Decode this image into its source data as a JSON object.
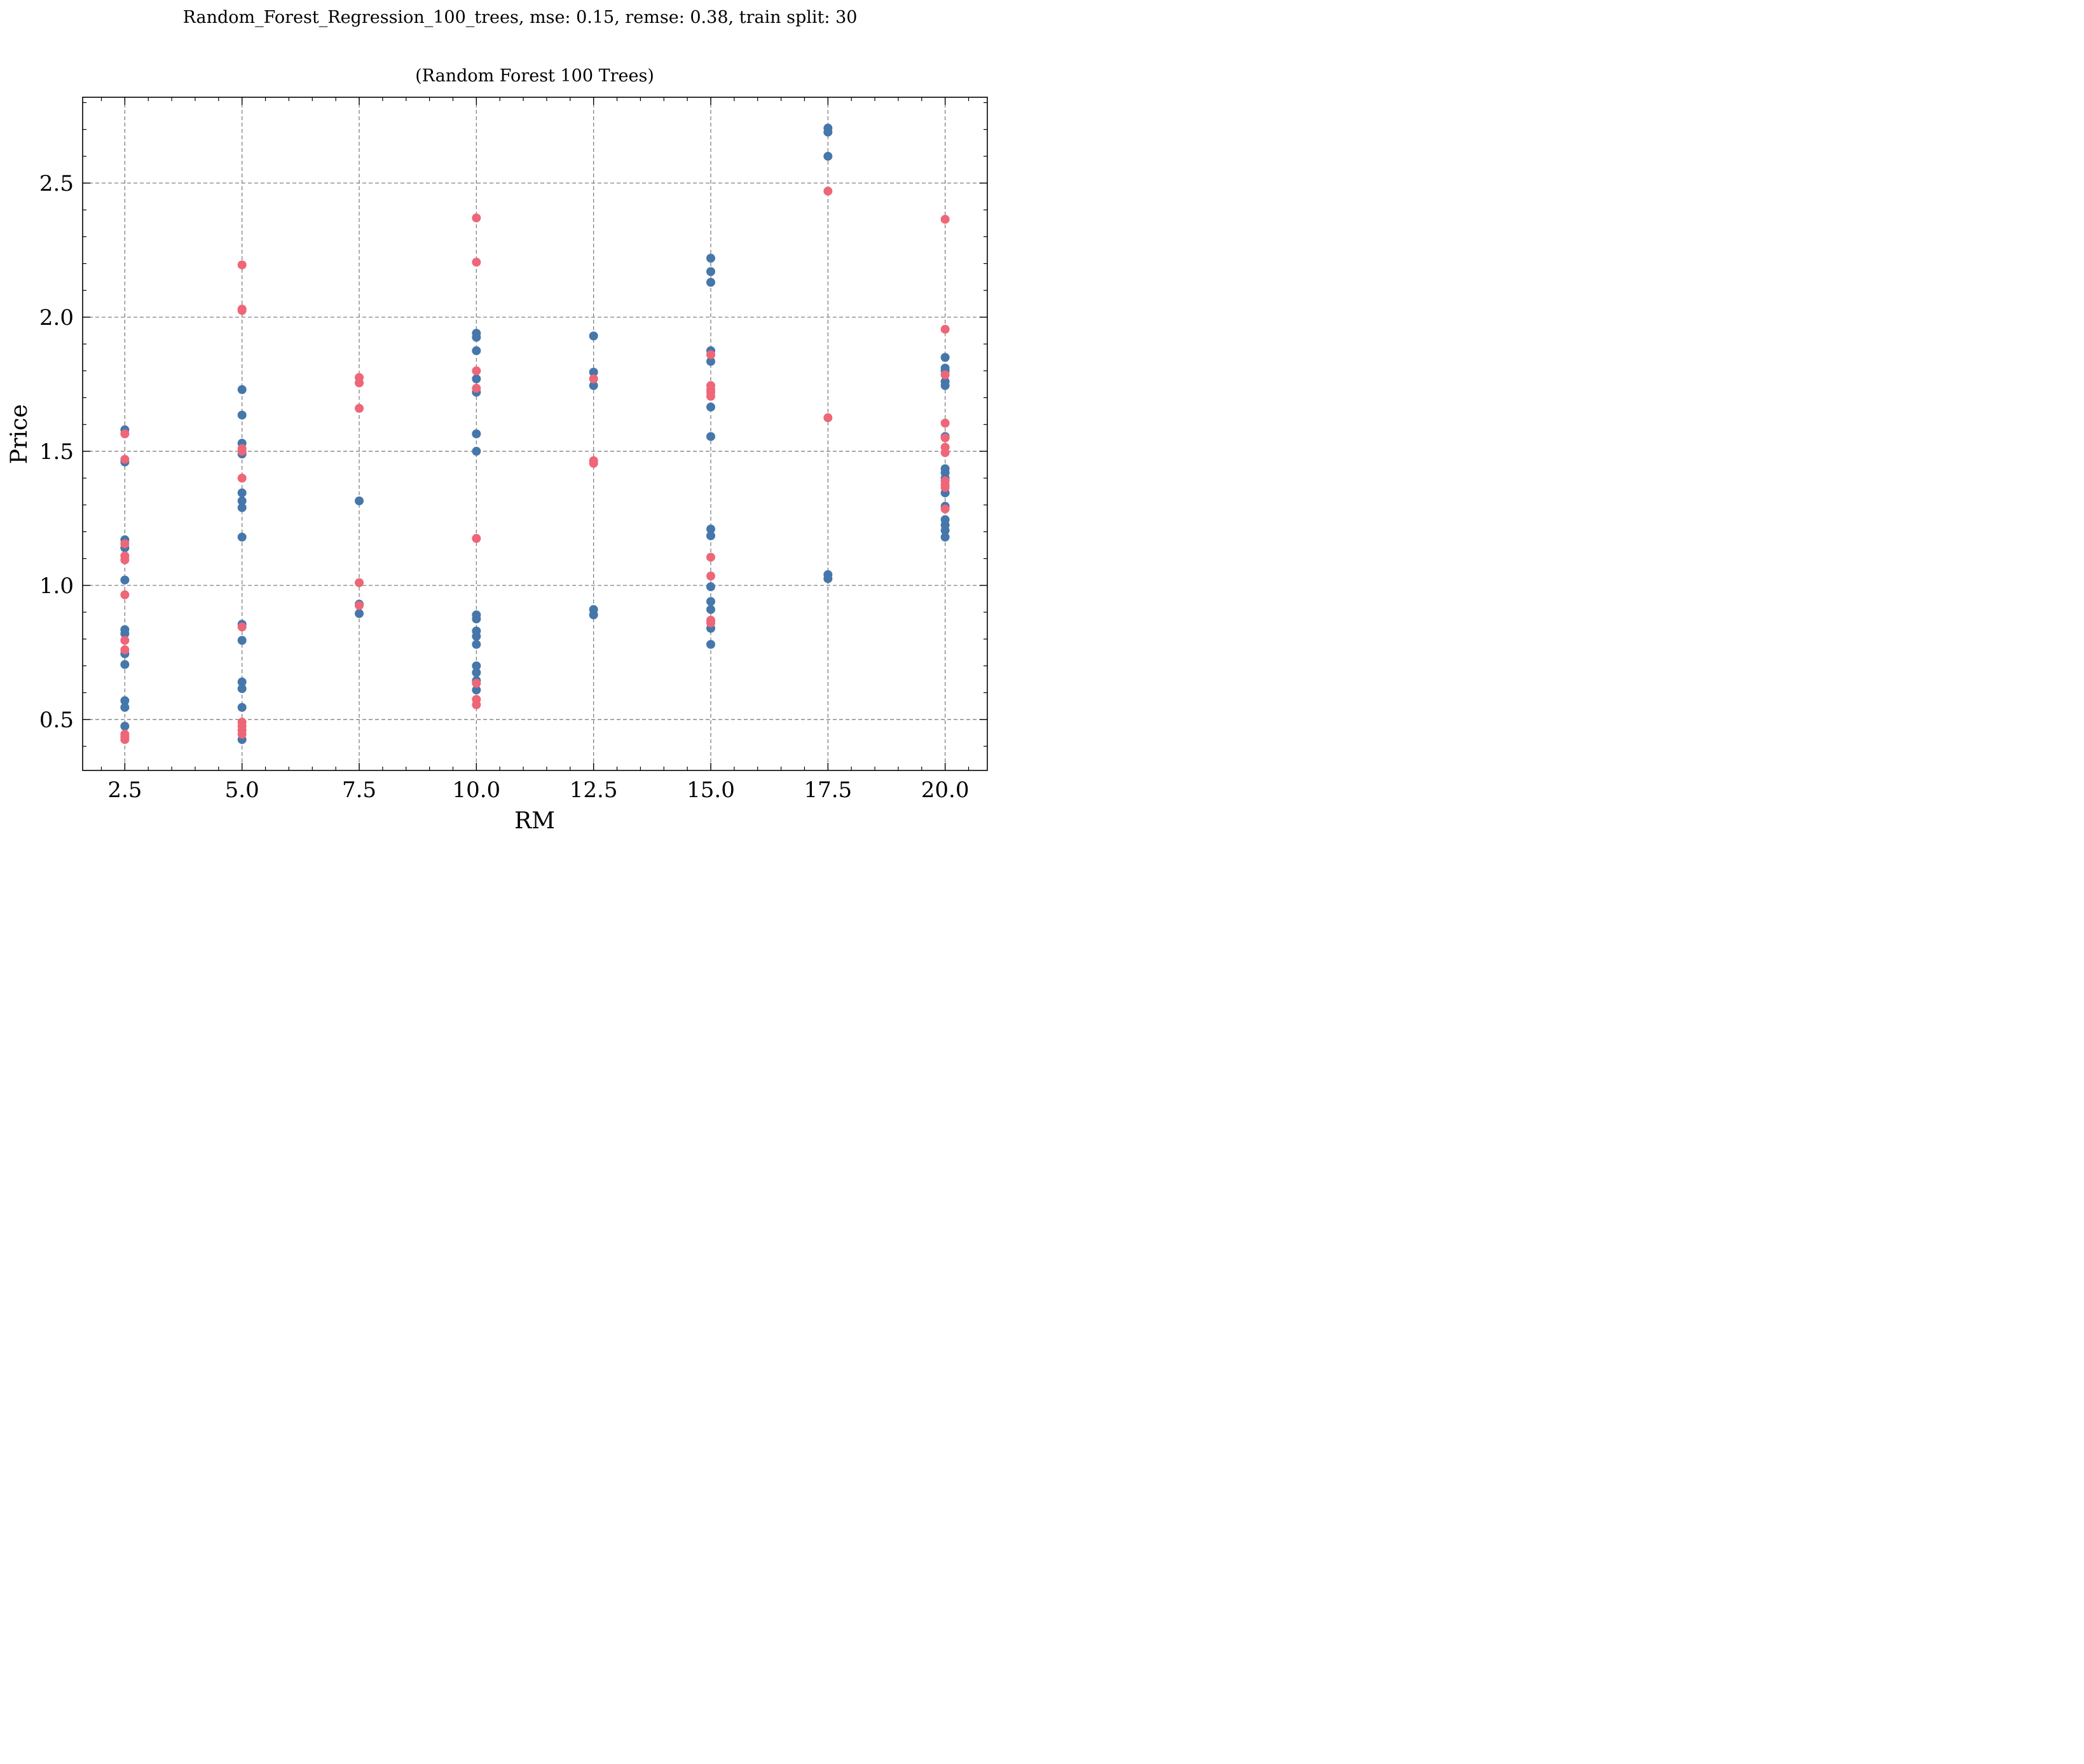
{
  "figure": {
    "suptitle": "Random_Forest_Regression_100_trees, mse: 0.15, remse: 0.38, train split: 30"
  },
  "chart_data": {
    "type": "scatter",
    "title": "(Random Forest 100 Trees)",
    "xlabel": "RM",
    "ylabel": "Price",
    "xlim": [
      1.6,
      20.9
    ],
    "ylim": [
      0.31,
      2.82
    ],
    "xticks": [
      2.5,
      5.0,
      7.5,
      10.0,
      12.5,
      15.0,
      17.5,
      20.0
    ],
    "xtick_labels": [
      "2.5",
      "5.0",
      "7.5",
      "10.0",
      "12.5",
      "15.0",
      "17.5",
      "20.0"
    ],
    "yticks": [
      0.5,
      1.0,
      1.5,
      2.0,
      2.5
    ],
    "ytick_labels": [
      "0.5",
      "1.0",
      "1.5",
      "2.0",
      "2.5"
    ],
    "grid": true,
    "legend": null,
    "colors": {
      "series_1": "#4577AA",
      "series_2": "#EE6677",
      "grid": "#808080",
      "axis": "#000000"
    },
    "series": [
      {
        "color": "#4577AA",
        "points": [
          [
            2.5,
            1.58
          ],
          [
            2.5,
            1.46
          ],
          [
            2.5,
            1.17
          ],
          [
            2.5,
            1.14
          ],
          [
            2.5,
            1.02
          ],
          [
            2.5,
            0.835
          ],
          [
            2.5,
            0.82
          ],
          [
            2.5,
            0.745
          ],
          [
            2.5,
            0.705
          ],
          [
            2.5,
            0.57
          ],
          [
            2.5,
            0.545
          ],
          [
            2.5,
            0.475
          ],
          [
            5.0,
            1.73
          ],
          [
            5.0,
            1.635
          ],
          [
            5.0,
            1.53
          ],
          [
            5.0,
            1.49
          ],
          [
            5.0,
            1.345
          ],
          [
            5.0,
            1.315
          ],
          [
            5.0,
            1.29
          ],
          [
            5.0,
            1.18
          ],
          [
            5.0,
            0.855
          ],
          [
            5.0,
            0.795
          ],
          [
            5.0,
            0.64
          ],
          [
            5.0,
            0.615
          ],
          [
            5.0,
            0.545
          ],
          [
            5.0,
            0.425
          ],
          [
            7.5,
            1.315
          ],
          [
            7.5,
            0.93
          ],
          [
            7.5,
            0.895
          ],
          [
            10.0,
            1.94
          ],
          [
            10.0,
            1.925
          ],
          [
            10.0,
            1.875
          ],
          [
            10.0,
            1.77
          ],
          [
            10.0,
            1.72
          ],
          [
            10.0,
            1.565
          ],
          [
            10.0,
            1.5
          ],
          [
            10.0,
            0.89
          ],
          [
            10.0,
            0.875
          ],
          [
            10.0,
            0.83
          ],
          [
            10.0,
            0.81
          ],
          [
            10.0,
            0.78
          ],
          [
            10.0,
            0.7
          ],
          [
            10.0,
            0.675
          ],
          [
            10.0,
            0.645
          ],
          [
            10.0,
            0.61
          ],
          [
            12.5,
            1.93
          ],
          [
            12.5,
            1.795
          ],
          [
            12.5,
            1.745
          ],
          [
            12.5,
            0.91
          ],
          [
            12.5,
            0.89
          ],
          [
            15.0,
            2.22
          ],
          [
            15.0,
            2.17
          ],
          [
            15.0,
            2.13
          ],
          [
            15.0,
            1.875
          ],
          [
            15.0,
            1.835
          ],
          [
            15.0,
            1.665
          ],
          [
            15.0,
            1.555
          ],
          [
            15.0,
            1.21
          ],
          [
            15.0,
            1.185
          ],
          [
            15.0,
            0.995
          ],
          [
            15.0,
            0.94
          ],
          [
            15.0,
            0.91
          ],
          [
            15.0,
            0.84
          ],
          [
            15.0,
            0.78
          ],
          [
            17.5,
            2.705
          ],
          [
            17.5,
            2.69
          ],
          [
            17.5,
            2.6
          ],
          [
            17.5,
            1.04
          ],
          [
            17.5,
            1.025
          ],
          [
            20.0,
            1.85
          ],
          [
            20.0,
            1.81
          ],
          [
            20.0,
            1.8
          ],
          [
            20.0,
            1.76
          ],
          [
            20.0,
            1.745
          ],
          [
            20.0,
            1.555
          ],
          [
            20.0,
            1.435
          ],
          [
            20.0,
            1.42
          ],
          [
            20.0,
            1.4
          ],
          [
            20.0,
            1.345
          ],
          [
            20.0,
            1.295
          ],
          [
            20.0,
            1.245
          ],
          [
            20.0,
            1.225
          ],
          [
            20.0,
            1.205
          ],
          [
            20.0,
            1.18
          ]
        ]
      },
      {
        "color": "#EE6677",
        "points": [
          [
            2.5,
            1.565
          ],
          [
            2.5,
            1.47
          ],
          [
            2.5,
            1.155
          ],
          [
            2.5,
            1.11
          ],
          [
            2.5,
            1.095
          ],
          [
            2.5,
            0.965
          ],
          [
            2.5,
            0.795
          ],
          [
            2.5,
            0.76
          ],
          [
            2.5,
            0.445
          ],
          [
            2.5,
            0.435
          ],
          [
            2.5,
            0.425
          ],
          [
            5.0,
            2.195
          ],
          [
            5.0,
            2.03
          ],
          [
            5.0,
            2.025
          ],
          [
            5.0,
            1.51
          ],
          [
            5.0,
            1.5
          ],
          [
            5.0,
            1.4
          ],
          [
            5.0,
            0.845
          ],
          [
            5.0,
            0.49
          ],
          [
            5.0,
            0.475
          ],
          [
            5.0,
            0.46
          ],
          [
            5.0,
            0.445
          ],
          [
            7.5,
            1.775
          ],
          [
            7.5,
            1.755
          ],
          [
            7.5,
            1.66
          ],
          [
            7.5,
            1.01
          ],
          [
            7.5,
            0.925
          ],
          [
            10.0,
            2.37
          ],
          [
            10.0,
            2.205
          ],
          [
            10.0,
            1.8
          ],
          [
            10.0,
            1.735
          ],
          [
            10.0,
            1.175
          ],
          [
            10.0,
            0.635
          ],
          [
            10.0,
            0.575
          ],
          [
            10.0,
            0.555
          ],
          [
            12.5,
            1.77
          ],
          [
            12.5,
            1.465
          ],
          [
            12.5,
            1.455
          ],
          [
            15.0,
            1.86
          ],
          [
            15.0,
            1.745
          ],
          [
            15.0,
            1.73
          ],
          [
            15.0,
            1.72
          ],
          [
            15.0,
            1.705
          ],
          [
            15.0,
            1.105
          ],
          [
            15.0,
            1.035
          ],
          [
            15.0,
            0.87
          ],
          [
            15.0,
            0.86
          ],
          [
            17.5,
            2.47
          ],
          [
            17.5,
            1.625
          ],
          [
            20.0,
            2.365
          ],
          [
            20.0,
            1.955
          ],
          [
            20.0,
            1.785
          ],
          [
            20.0,
            1.605
          ],
          [
            20.0,
            1.55
          ],
          [
            20.0,
            1.515
          ],
          [
            20.0,
            1.495
          ],
          [
            20.0,
            1.39
          ],
          [
            20.0,
            1.375
          ],
          [
            20.0,
            1.365
          ],
          [
            20.0,
            1.285
          ]
        ]
      }
    ]
  }
}
